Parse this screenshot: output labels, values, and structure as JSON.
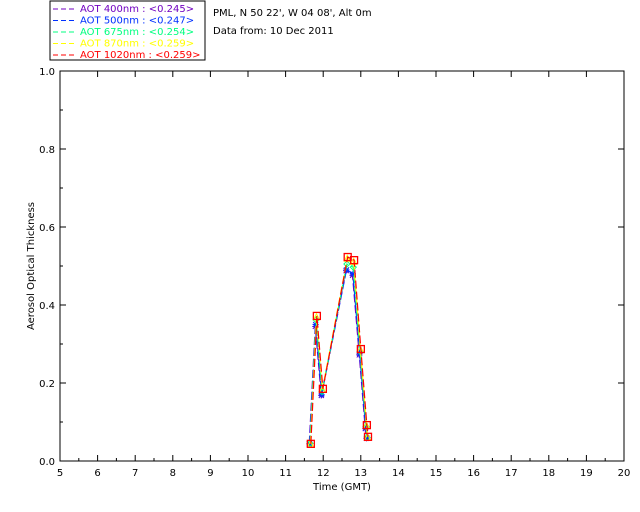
{
  "header": {
    "location": "PML, N 50 22', W 04 08', Alt 0m",
    "date": "Data from: 10 Dec 2011"
  },
  "chart_data": {
    "type": "line",
    "xlabel": "Time (GMT)",
    "ylabel": "Aerosol Optical Thickness",
    "xlim": [
      5,
      20
    ],
    "ylim": [
      0,
      1.0
    ],
    "xticks": [
      5,
      6,
      7,
      8,
      9,
      10,
      11,
      12,
      13,
      14,
      15,
      16,
      17,
      18,
      19,
      20
    ],
    "yticks": [
      "0.0",
      "0.2",
      "0.4",
      "0.6",
      "0.8",
      "1.0"
    ],
    "legend_placement": "top-left-outside",
    "x": [
      11.65,
      11.81,
      11.97,
      12.63,
      12.8,
      12.98,
      13.14,
      13.17
    ],
    "series": [
      {
        "name": "AOT  400nm : <0.245>",
        "color": "#7000c0",
        "marker": "star",
        "values": [
          0.044,
          0.345,
          0.168,
          0.488,
          0.476,
          0.272,
          0.083,
          0.058
        ]
      },
      {
        "name": "AOT  500nm : <0.247>",
        "color": "#0030ff",
        "marker": "star",
        "values": [
          0.045,
          0.35,
          0.17,
          0.49,
          0.48,
          0.275,
          0.085,
          0.059
        ]
      },
      {
        "name": "AOT  675nm : <0.254>",
        "color": "#00ff80",
        "marker": "diamond",
        "values": [
          0.045,
          0.362,
          0.178,
          0.505,
          0.497,
          0.281,
          0.088,
          0.06
        ]
      },
      {
        "name": "AOT  870nm : <0.259>",
        "color": "#ffff00",
        "marker": "triangle",
        "values": [
          0.044,
          0.37,
          0.184,
          0.52,
          0.512,
          0.286,
          0.091,
          0.061
        ]
      },
      {
        "name": "AOT 1020nm : <0.259>",
        "color": "#ff0000",
        "marker": "square",
        "values": [
          0.044,
          0.372,
          0.185,
          0.523,
          0.515,
          0.287,
          0.092,
          0.062
        ]
      }
    ]
  }
}
